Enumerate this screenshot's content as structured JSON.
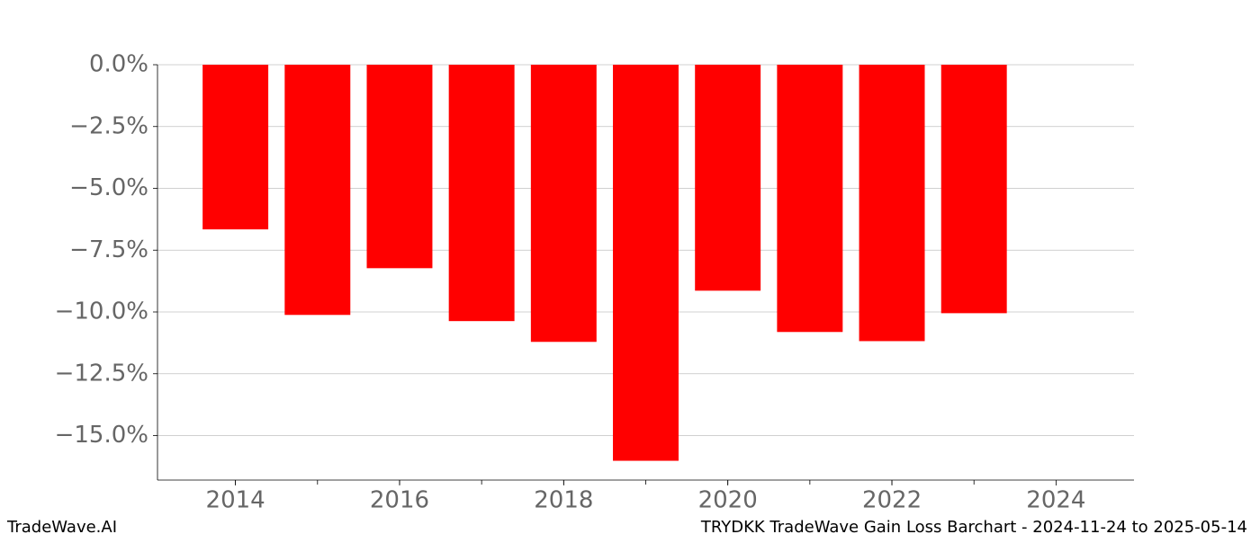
{
  "chart_data": {
    "type": "bar",
    "x": [
      2014,
      2015,
      2016,
      2017,
      2018,
      2019,
      2020,
      2021,
      2022,
      2023
    ],
    "values": [
      -6.66,
      -10.12,
      -8.23,
      -10.37,
      -11.21,
      -16.02,
      -9.14,
      -10.81,
      -11.18,
      -10.05
    ],
    "color": "#ff0000",
    "xlim": [
      2013.05,
      2024.95
    ],
    "xticks": [
      2014,
      2016,
      2018,
      2020,
      2022,
      2024
    ],
    "ylim": [
      -16.8,
      0
    ],
    "yticks": [
      {
        "value": 0,
        "label": "0.0%"
      },
      {
        "value": -2.5,
        "label": "−2.5%"
      },
      {
        "value": -5,
        "label": "−5.0%"
      },
      {
        "value": -7.5,
        "label": "−7.5%"
      },
      {
        "value": -10,
        "label": "−10.0%"
      },
      {
        "value": -12.5,
        "label": "−12.5%"
      },
      {
        "value": -15,
        "label": "−15.0%"
      }
    ],
    "grid": true
  },
  "footer": {
    "left": "TradeWave.AI",
    "right": "TRYDKK TradeWave Gain Loss Barchart - 2024-11-24 to 2025-05-14"
  }
}
